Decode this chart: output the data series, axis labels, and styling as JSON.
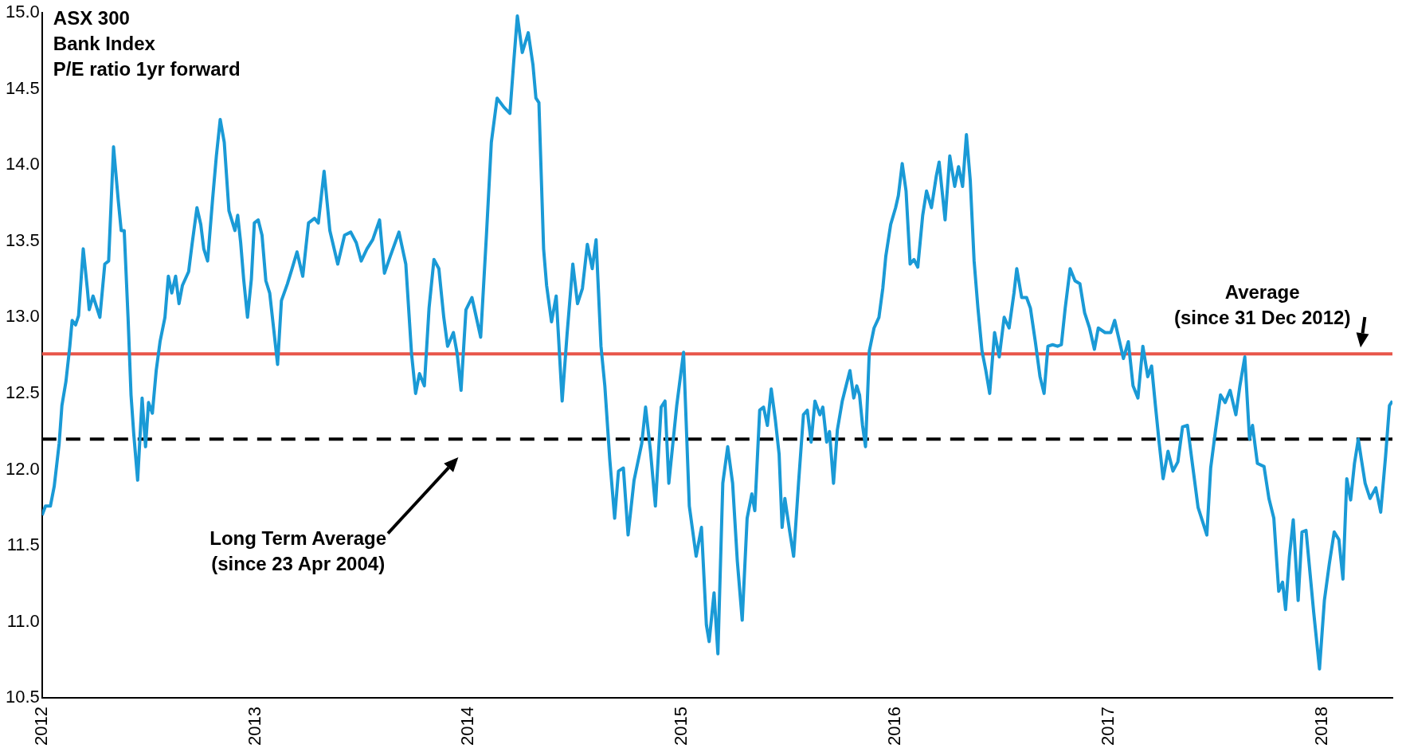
{
  "chart_data": {
    "type": "line",
    "title": "ASX 300\nBank Index\nP/E ratio 1yr forward",
    "x": [
      2012.0,
      2012.016,
      2012.039,
      2012.057,
      2012.08,
      2012.093,
      2012.112,
      2012.13,
      2012.141,
      2012.157,
      2012.171,
      2012.193,
      2012.212,
      2012.221,
      2012.239,
      2012.271,
      2012.294,
      2012.312,
      2012.335,
      2012.357,
      2012.371,
      2012.385,
      2012.403,
      2012.417,
      2012.43,
      2012.448,
      2012.469,
      2012.485,
      2012.499,
      2012.517,
      2012.535,
      2012.553,
      2012.576,
      2012.592,
      2012.608,
      2012.626,
      2012.642,
      2012.658,
      2012.687,
      2012.703,
      2012.726,
      2012.744,
      2012.758,
      2012.776,
      2012.799,
      2012.817,
      2012.835,
      2012.854,
      2012.876,
      2012.904,
      2012.917,
      2012.931,
      2012.945,
      2012.963,
      2012.981,
      2012.995,
      2013.013,
      2013.031,
      2013.049,
      2013.067,
      2013.086,
      2013.104,
      2013.122,
      2013.15,
      2013.172,
      2013.195,
      2013.222,
      2013.249,
      2013.277,
      2013.295,
      2013.322,
      2013.349,
      2013.386,
      2013.418,
      2013.447,
      2013.473,
      2013.496,
      2013.523,
      2013.55,
      2013.582,
      2013.605,
      2013.632,
      2013.673,
      2013.705,
      2013.732,
      2013.751,
      2013.769,
      2013.792,
      2013.814,
      2013.837,
      2013.86,
      2013.883,
      2013.901,
      2013.928,
      2013.946,
      2013.964,
      2013.987,
      2014.015,
      2014.056,
      2014.083,
      2014.106,
      2014.133,
      2014.165,
      2014.193,
      2014.21,
      2014.228,
      2014.251,
      2014.279,
      2014.301,
      2014.315,
      2014.329,
      2014.351,
      2014.365,
      2014.388,
      2014.41,
      2014.438,
      2014.461,
      2014.488,
      2014.51,
      2014.533,
      2014.556,
      2014.579,
      2014.597,
      2014.62,
      2014.638,
      2014.661,
      2014.684,
      2014.702,
      2014.725,
      2014.747,
      2014.775,
      2014.811,
      2014.829,
      2014.852,
      2014.875,
      2014.902,
      2014.92,
      2014.938,
      2014.975,
      2015.007,
      2015.034,
      2015.066,
      2015.091,
      2015.114,
      2015.127,
      2015.15,
      2015.168,
      2015.191,
      2015.214,
      2015.237,
      2015.259,
      2015.282,
      2015.305,
      2015.327,
      2015.341,
      2015.364,
      2015.382,
      2015.4,
      2015.418,
      2015.437,
      2015.455,
      2015.469,
      2015.482,
      2015.505,
      2015.523,
      2015.546,
      2015.569,
      2015.587,
      2015.605,
      2015.623,
      2015.646,
      2015.66,
      2015.678,
      2015.691,
      2015.71,
      2015.728,
      2015.751,
      2015.769,
      2015.787,
      2015.805,
      2015.819,
      2015.832,
      2015.846,
      2015.86,
      2015.878,
      2015.9,
      2015.923,
      2015.941,
      2015.955,
      2015.978,
      2016.001,
      2016.014,
      2016.032,
      2016.05,
      2016.069,
      2016.087,
      2016.105,
      2016.128,
      2016.146,
      2016.169,
      2016.192,
      2016.205,
      2016.233,
      2016.255,
      2016.278,
      2016.296,
      2016.315,
      2016.333,
      2016.351,
      2016.369,
      2016.387,
      2016.406,
      2016.424,
      2016.442,
      2016.465,
      2016.487,
      2016.51,
      2016.533,
      2016.556,
      2016.569,
      2016.592,
      2016.615,
      2016.633,
      2016.656,
      2016.678,
      2016.697,
      2016.715,
      2016.737,
      2016.76,
      2016.778,
      2016.796,
      2016.819,
      2016.842,
      2016.865,
      2016.887,
      2016.91,
      2016.933,
      2016.951,
      2016.983,
      2017.01,
      2017.028,
      2017.046,
      2017.069,
      2017.092,
      2017.114,
      2017.137,
      2017.16,
      2017.183,
      2017.201,
      2017.219,
      2017.237,
      2017.255,
      2017.278,
      2017.301,
      2017.324,
      2017.346,
      2017.369,
      2017.392,
      2017.419,
      2017.442,
      2017.46,
      2017.478,
      2017.501,
      2017.524,
      2017.546,
      2017.569,
      2017.596,
      2017.615,
      2017.638,
      2017.66,
      2017.674,
      2017.697,
      2017.728,
      2017.751,
      2017.774,
      2017.797,
      2017.815,
      2017.829,
      2017.847,
      2017.865,
      2017.888,
      2017.906,
      2017.925,
      2017.943,
      2017.961,
      2017.988,
      2018.011,
      2018.034,
      2018.057,
      2018.079,
      2018.098,
      2018.116,
      2018.134,
      2018.152,
      2018.17,
      2018.184,
      2018.202,
      2018.225,
      2018.252,
      2018.275,
      2018.298,
      2018.316,
      2018.33
    ],
    "series": [
      {
        "color": "#1a9ad6",
        "values": [
          11.7,
          11.76,
          11.76,
          11.89,
          12.17,
          12.42,
          12.58,
          12.81,
          12.98,
          12.95,
          13.01,
          13.45,
          13.19,
          13.05,
          13.14,
          13.0,
          13.35,
          13.37,
          14.12,
          13.77,
          13.57,
          13.57,
          13.0,
          12.49,
          12.23,
          11.93,
          12.47,
          12.15,
          12.44,
          12.37,
          12.65,
          12.84,
          13.0,
          13.27,
          13.16,
          13.27,
          13.09,
          13.21,
          13.3,
          13.48,
          13.72,
          13.61,
          13.45,
          13.37,
          13.77,
          14.06,
          14.3,
          14.15,
          13.7,
          13.57,
          13.67,
          13.49,
          13.25,
          13.0,
          13.25,
          13.62,
          13.64,
          13.54,
          13.24,
          13.16,
          12.92,
          12.69,
          13.11,
          13.22,
          13.32,
          13.43,
          13.27,
          13.62,
          13.65,
          13.62,
          13.96,
          13.57,
          13.35,
          13.54,
          13.56,
          13.49,
          13.37,
          13.45,
          13.51,
          13.64,
          13.29,
          13.4,
          13.56,
          13.35,
          12.76,
          12.5,
          12.63,
          12.55,
          13.06,
          13.38,
          13.32,
          13.0,
          12.81,
          12.9,
          12.76,
          12.52,
          13.05,
          13.13,
          12.87,
          13.54,
          14.15,
          14.44,
          14.38,
          14.34,
          14.66,
          14.98,
          14.74,
          14.87,
          14.66,
          14.44,
          14.41,
          13.45,
          13.21,
          12.97,
          13.14,
          12.45,
          12.89,
          13.35,
          13.09,
          13.19,
          13.48,
          13.32,
          13.51,
          12.81,
          12.55,
          12.07,
          11.68,
          11.99,
          12.01,
          11.57,
          11.93,
          12.17,
          12.41,
          12.12,
          11.76,
          12.41,
          12.45,
          11.91,
          12.42,
          12.77,
          11.76,
          11.43,
          11.62,
          10.98,
          10.87,
          11.19,
          10.79,
          11.91,
          12.15,
          11.91,
          11.4,
          11.01,
          11.68,
          11.84,
          11.73,
          12.39,
          12.41,
          12.29,
          12.53,
          12.33,
          12.1,
          11.62,
          11.81,
          11.59,
          11.43,
          11.91,
          12.36,
          12.39,
          12.18,
          12.45,
          12.36,
          12.41,
          12.18,
          12.25,
          11.91,
          12.26,
          12.45,
          12.55,
          12.65,
          12.47,
          12.55,
          12.49,
          12.29,
          12.15,
          12.78,
          12.93,
          13.0,
          13.19,
          13.4,
          13.61,
          13.72,
          13.8,
          14.01,
          13.83,
          13.35,
          13.38,
          13.33,
          13.67,
          13.83,
          13.72,
          13.93,
          14.02,
          13.64,
          14.06,
          13.86,
          13.99,
          13.86,
          14.2,
          13.9,
          13.37,
          13.06,
          12.78,
          12.65,
          12.5,
          12.9,
          12.74,
          13.0,
          12.93,
          13.16,
          13.32,
          13.13,
          13.13,
          13.06,
          12.84,
          12.61,
          12.5,
          12.81,
          12.82,
          12.81,
          12.82,
          13.06,
          13.32,
          13.24,
          13.22,
          13.03,
          12.93,
          12.79,
          12.93,
          12.9,
          12.9,
          12.98,
          12.87,
          12.73,
          12.84,
          12.55,
          12.47,
          12.81,
          12.61,
          12.68,
          12.42,
          12.17,
          11.94,
          12.12,
          11.99,
          12.05,
          12.28,
          12.29,
          12.04,
          11.75,
          11.65,
          11.57,
          12.01,
          12.26,
          12.49,
          12.44,
          12.52,
          12.36,
          12.55,
          12.74,
          12.2,
          12.29,
          12.04,
          12.02,
          11.81,
          11.68,
          11.2,
          11.26,
          11.08,
          11.43,
          11.67,
          11.14,
          11.59,
          11.6,
          11.33,
          11.06,
          10.69,
          11.14,
          11.38,
          11.59,
          11.54,
          11.28,
          11.94,
          11.8,
          12.04,
          12.2,
          12.07,
          11.91,
          11.81,
          11.88,
          11.72,
          12.09,
          12.42,
          12.45
        ]
      }
    ],
    "xlim": [
      2012,
      2018.33
    ],
    "xticks": [
      2012,
      2013,
      2014,
      2015,
      2016,
      2017,
      2018
    ],
    "ylim": [
      10.5,
      15
    ],
    "yticks": [
      {
        "value": 10.5,
        "label": "10.5"
      },
      {
        "value": 11,
        "label": "11.0"
      },
      {
        "value": 11.5,
        "label": "11.5"
      },
      {
        "value": 12,
        "label": "12.0"
      },
      {
        "value": 12.5,
        "label": "12.5"
      },
      {
        "value": 13,
        "label": "13.0"
      },
      {
        "value": 13.5,
        "label": "13.5"
      },
      {
        "value": 14,
        "label": "14.0"
      },
      {
        "value": 14.5,
        "label": "14.5"
      },
      {
        "value": 15,
        "label": "15.0"
      }
    ],
    "ref_lines": [
      {
        "axis": "y",
        "value": 12.76,
        "label": "Average\n(since 31 Dec 2012)",
        "color": "#e8564a",
        "line_style": "solid"
      },
      {
        "axis": "y",
        "value": 12.2,
        "label": "Long Term Average\n(since 23 Apr 2004)",
        "color": "#000000",
        "line_style": "dashed"
      }
    ],
    "grid": false,
    "legend": false,
    "marker": "none",
    "line_style": "solid"
  }
}
